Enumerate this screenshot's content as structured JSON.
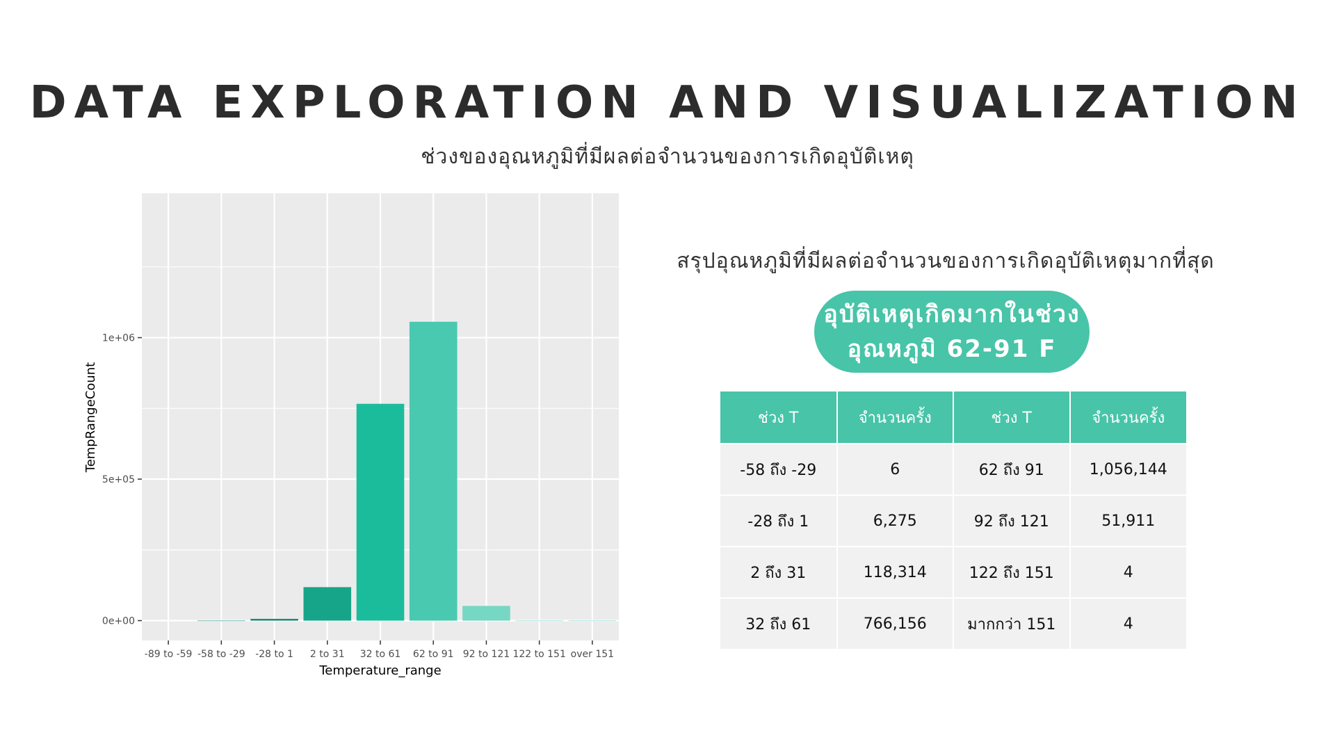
{
  "page": {
    "title": "DATA EXPLORATION AND VISUALIZATION",
    "subtitle": "ช่วงของอุณหภูมิที่มีผลต่อจำนวนของการเกิดอุบัติเหตุ"
  },
  "summary": {
    "heading": "สรุปอุณหภูมิที่มีผลต่อจำนวนของการเกิดอุบัติเหตุมากที่สุด",
    "highlight_line1": "อุบัติเหตุเกิดมากในช่วง",
    "highlight_line2": "อุณหภูมิ 62-91 F"
  },
  "table": {
    "headers": [
      "ช่วง T",
      "จำนวนครั้ง",
      "ช่วง T",
      "จำนวนครั้ง"
    ],
    "rows": [
      [
        "-58 ถึง -29",
        "6",
        "62 ถึง 91",
        "1,056,144"
      ],
      [
        "-28 ถึง 1",
        "6,275",
        "92 ถึง 121",
        "51,911"
      ],
      [
        "2 ถึง 31",
        "118,314",
        "122 ถึง 151",
        "4"
      ],
      [
        "32 ถึง 61",
        "766,156",
        "มากกว่า 151",
        "4"
      ]
    ]
  },
  "chart_data": {
    "type": "bar",
    "xlabel": "Temperature_range",
    "ylabel": "TempRangeCount",
    "categories": [
      "-89 to -59",
      "-58 to -29",
      "-28 to 1",
      "2 to 31",
      "32 to 61",
      "62 to 91",
      "92 to 121",
      "122 to 151",
      "over 151"
    ],
    "values": [
      0,
      6,
      6275,
      118314,
      766156,
      1056144,
      51911,
      4,
      4
    ],
    "colors": [
      "#1a8a76",
      "#1a8a76",
      "#1a8a76",
      "#17a58a",
      "#1bbc9b",
      "#48c9b0",
      "#76d7c4",
      "#76d7c4",
      "#76d7c4"
    ],
    "yticks": [
      0,
      500000,
      1000000
    ],
    "ytick_labels": [
      "0e+00",
      "5e+05",
      "1e+06"
    ],
    "ylim": [
      -70000,
      1510000
    ],
    "grid": true,
    "panel_background": "#ebebeb",
    "grid_color": "#ffffff"
  }
}
